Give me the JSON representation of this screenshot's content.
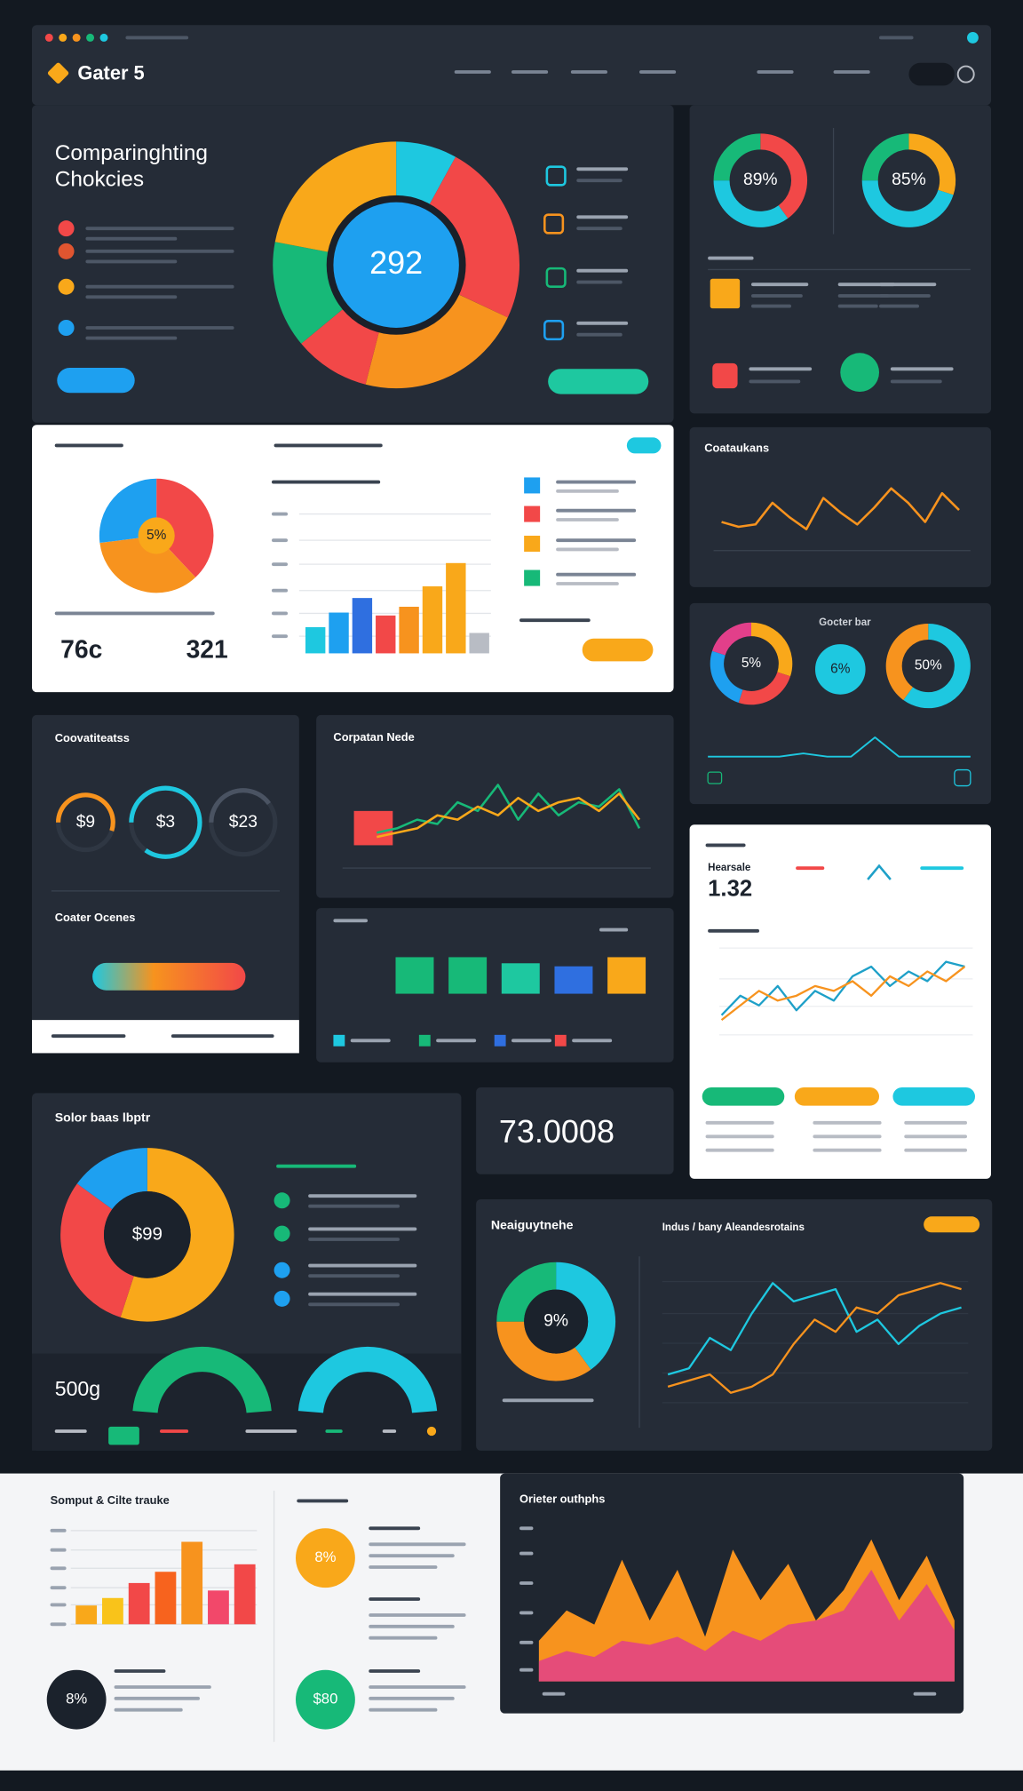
{
  "header": {
    "brand": "Gater 5"
  },
  "hero": {
    "title": [
      "Comparinghting",
      "Chokcies"
    ],
    "donut": {
      "center": "292",
      "values": [
        8,
        24,
        22,
        10,
        14,
        22
      ],
      "colors": [
        "#1ec8e0",
        "#f24848",
        "#f7931e",
        "#f24848",
        "#17b978",
        "#f9a81a"
      ]
    }
  },
  "top_right": {
    "donuts": [
      {
        "center": "89%",
        "values": [
          40,
          35,
          25
        ],
        "colors": [
          "#f24848",
          "#1ec8e0",
          "#17b978"
        ]
      },
      {
        "center": "85%",
        "values": [
          30,
          45,
          25
        ],
        "colors": [
          "#f9a81a",
          "#1ec8e0",
          "#17b978"
        ]
      }
    ]
  },
  "overview": {
    "pie": {
      "center": "5%",
      "values": [
        38,
        35,
        27
      ],
      "colors": [
        "#f24848",
        "#f7931e",
        "#1ea0f0"
      ]
    },
    "stats": [
      "76c",
      "321"
    ],
    "bars": {
      "ylim": [
        0,
        80
      ],
      "values": [
        18,
        28,
        38,
        26,
        32,
        46,
        62,
        14
      ],
      "colors": [
        "#1ec8e0",
        "#1ea0f0",
        "#2f6fe0",
        "#f24848",
        "#f7931e",
        "#f9a81a",
        "#f9a81a",
        "#b8bcc4"
      ]
    }
  },
  "trend": {
    "title": "Coataukans",
    "line": {
      "ylim": [
        0,
        30
      ],
      "series": [
        {
          "color": "#f7931e",
          "values": [
            10,
            8,
            9,
            18,
            12,
            7,
            20,
            14,
            9,
            16,
            24,
            18,
            10,
            22,
            15
          ]
        }
      ]
    }
  },
  "rings": {
    "title": "Gocter bar",
    "donuts": [
      {
        "center": "5%",
        "values": [
          30,
          25,
          25,
          20
        ],
        "colors": [
          "#f9a81a",
          "#f24848",
          "#1ea0f0",
          "#e23f8a"
        ]
      },
      {
        "center": "6%",
        "values": [
          100
        ],
        "colors": [
          "#1ec8e0"
        ]
      },
      {
        "center": "50%",
        "values": [
          60,
          40
        ],
        "colors": [
          "#1ec8e0",
          "#f7931e"
        ]
      }
    ],
    "line": {
      "ylim": [
        0,
        10
      ],
      "series": [
        {
          "color": "#1ec8e0",
          "values": [
            2,
            2,
            2,
            2,
            3,
            2,
            2,
            8,
            2,
            2,
            2,
            2
          ]
        }
      ]
    }
  },
  "gauges": {
    "title": "Coovatiteatss",
    "subtitle": "Coater Ocenes",
    "ylim": [
      0,
      100
    ],
    "items": [
      {
        "label": "$9",
        "value": 55,
        "color": "#f7931e"
      },
      {
        "label": "$3",
        "value": 85,
        "color": "#1ec8e0"
      },
      {
        "label": "$23",
        "value": 40,
        "color": "#4a5362"
      }
    ]
  },
  "signal": {
    "title": "Corpatan Nede",
    "line": {
      "ylim": [
        0,
        20
      ],
      "series": [
        {
          "color": "#17b978",
          "values": [
            5,
            6,
            8,
            7,
            12,
            10,
            16,
            8,
            14,
            9,
            12,
            11,
            15,
            6
          ]
        },
        {
          "color": "#f9a81a",
          "values": [
            4,
            5,
            6,
            9,
            8,
            11,
            9,
            13,
            10,
            12,
            13,
            10,
            14,
            8
          ]
        }
      ]
    }
  },
  "blocks": {
    "bars": {
      "ylim": [
        0,
        30
      ],
      "values": [
        24,
        24,
        20,
        18,
        24
      ],
      "colors": [
        "#17b978",
        "#17b978",
        "#1ec8a0",
        "#2f6fe0",
        "#f9a81a"
      ]
    }
  },
  "report": {
    "title": "Hearsale",
    "stat": "1.32",
    "line": {
      "ylim": [
        0,
        40
      ],
      "series": [
        {
          "color": "#1ea0c8",
          "values": [
            10,
            18,
            14,
            22,
            12,
            20,
            16,
            26,
            30,
            22,
            28,
            24,
            32,
            30
          ]
        },
        {
          "color": "#f7931e",
          "values": [
            8,
            14,
            20,
            16,
            18,
            22,
            20,
            24,
            18,
            26,
            22,
            28,
            24,
            30
          ]
        }
      ]
    }
  },
  "total": {
    "value": "73.0008"
  },
  "share": {
    "title": "Solor baas lbptr",
    "donut": {
      "center": "$99",
      "values": [
        55,
        30,
        15
      ],
      "colors": [
        "#f9a81a",
        "#f24848",
        "#1ea0f0"
      ]
    },
    "stat": "500g"
  },
  "compare": {
    "title": "Neaiguytnehe",
    "subtitle": "Indus / bany Aleandesrotains",
    "donut": {
      "center": "9%",
      "values": [
        40,
        35,
        25
      ],
      "colors": [
        "#1ec8e0",
        "#f7931e",
        "#17b978"
      ]
    },
    "line": {
      "ylim": [
        0,
        45
      ],
      "series": [
        {
          "color": "#1ec8e0",
          "values": [
            10,
            12,
            22,
            18,
            30,
            40,
            34,
            36,
            38,
            24,
            28,
            20,
            26,
            30,
            32
          ]
        },
        {
          "color": "#f7931e",
          "values": [
            6,
            8,
            10,
            4,
            6,
            10,
            20,
            28,
            24,
            32,
            30,
            36,
            38,
            40,
            38
          ]
        }
      ]
    }
  },
  "bottom": {
    "title": "Somput & Cilte trauke",
    "bars": {
      "ylim": [
        0,
        50
      ],
      "values": [
        10,
        14,
        22,
        28,
        44,
        18,
        32
      ],
      "colors": [
        "#f9a81a",
        "#f9c31a",
        "#f24848",
        "#f7631e",
        "#f7931e",
        "#f2486a",
        "#f24848"
      ]
    },
    "circles": [
      {
        "label": "8%",
        "color": "#1b222c"
      },
      {
        "label": "8%",
        "color": "#f9a81a"
      },
      {
        "label": "$80",
        "color": "#17b978"
      }
    ]
  },
  "area": {
    "title": "Orieter outhphs",
    "ylim": [
      0,
      80
    ],
    "series": [
      {
        "color": "#f7931e",
        "values": [
          20,
          35,
          28,
          60,
          30,
          55,
          22,
          65,
          40,
          58,
          30,
          45,
          70,
          40,
          62,
          30
        ]
      },
      {
        "color": "#e23f8a",
        "values": [
          10,
          15,
          12,
          20,
          18,
          22,
          15,
          25,
          20,
          28,
          30,
          35,
          55,
          30,
          48,
          25
        ]
      }
    ]
  }
}
